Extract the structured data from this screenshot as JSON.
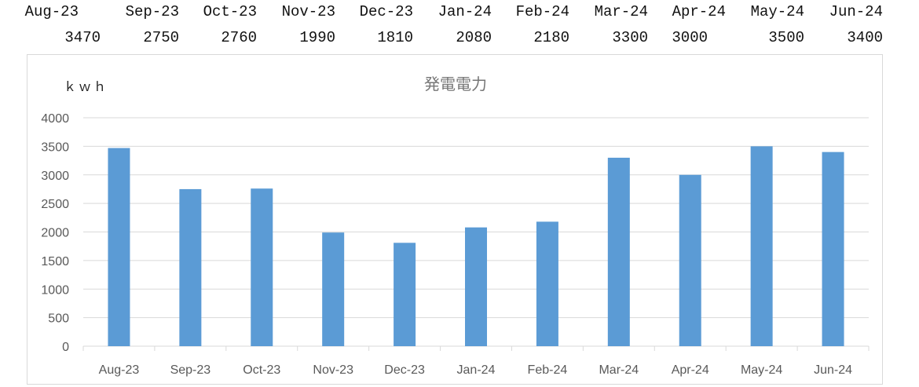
{
  "table": {
    "months": [
      "Aug-23",
      "Sep-23",
      "Oct-23",
      "Nov-23",
      "Dec-23",
      "Jan-24",
      "Feb-24",
      "Mar-24",
      "Apr-24",
      "May-24",
      "Jun-24"
    ],
    "values": [
      "3470",
      "2750",
      "2760",
      "1990",
      "1810",
      "2080",
      "2180",
      "3300",
      "3000",
      "3500",
      "3400"
    ]
  },
  "chart_data": {
    "type": "bar",
    "title": "発電電力",
    "ylabel": "ｋｗｈ",
    "xlabel": "",
    "categories": [
      "Aug-23",
      "Sep-23",
      "Oct-23",
      "Nov-23",
      "Dec-23",
      "Jan-24",
      "Feb-24",
      "Mar-24",
      "Apr-24",
      "May-24",
      "Jun-24"
    ],
    "values": [
      3470,
      2750,
      2760,
      1990,
      1810,
      2080,
      2180,
      3300,
      3000,
      3500,
      3400
    ],
    "yticks": [
      "0",
      "500",
      "1000",
      "1500",
      "2000",
      "2500",
      "3000",
      "3500",
      "4000"
    ],
    "ylim": [
      0,
      4000
    ],
    "grid": true,
    "legend": "none",
    "bar_color": "#5b9bd5",
    "grid_color": "#d9d9d9",
    "axis_text_color": "#595959"
  }
}
